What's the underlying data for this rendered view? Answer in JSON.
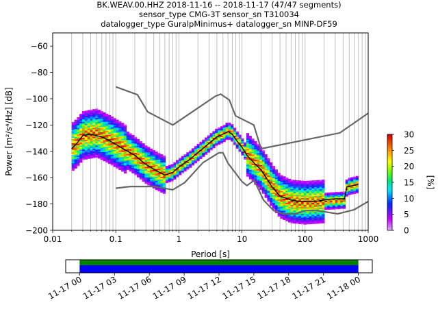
{
  "chart_data": {
    "type": "heatmap",
    "title_lines": [
      "BK.WEAV.00.HHZ   2018-11-16 -- 2018-11-17  (47/47 segments)",
      "sensor_type CMG-3T sensor_sn T310034",
      "datalogger_type GuralpMinimus+ datalogger_sn MINP-DF59"
    ],
    "xlabel": "Period [s]",
    "ylabel": "Power [m²/s⁴/Hz] [dB]",
    "x_scale": "log",
    "xlim": [
      0.01,
      1000
    ],
    "ylim": [
      -200,
      -50
    ],
    "x_ticks": [
      {
        "value": 0.01,
        "label": "0.01"
      },
      {
        "value": 0.1,
        "label": "0.1"
      },
      {
        "value": 1,
        "label": "1"
      },
      {
        "value": 10,
        "label": "10"
      },
      {
        "value": 100,
        "label": "100"
      },
      {
        "value": 1000,
        "label": "1000"
      }
    ],
    "y_ticks": [
      {
        "value": -60,
        "label": "−60"
      },
      {
        "value": -80,
        "label": "−80"
      },
      {
        "value": -100,
        "label": "−100"
      },
      {
        "value": -120,
        "label": "−120"
      },
      {
        "value": -140,
        "label": "−140"
      },
      {
        "value": -160,
        "label": "−160"
      },
      {
        "value": -180,
        "label": "−180"
      },
      {
        "value": -200,
        "label": "−200"
      }
    ],
    "grid": "vertical at minor and major period ticks",
    "noise_models": {
      "color": "#666666",
      "nhnm": [
        [
          0.1,
          -91
        ],
        [
          0.22,
          -97
        ],
        [
          0.32,
          -110
        ],
        [
          0.8,
          -120
        ],
        [
          3.8,
          -98
        ],
        [
          4.6,
          -96.5
        ],
        [
          6.3,
          -101
        ],
        [
          7.9,
          -113
        ],
        [
          15.4,
          -120
        ],
        [
          20,
          -138
        ],
        [
          354.8,
          -126
        ],
        [
          1000,
          -111
        ]
      ],
      "nlnm": [
        [
          0.1,
          -168
        ],
        [
          0.17,
          -166.7
        ],
        [
          0.4,
          -166.7
        ],
        [
          0.8,
          -169.2
        ],
        [
          1.24,
          -163.7
        ],
        [
          2.4,
          -148.6
        ],
        [
          4.3,
          -141.1
        ],
        [
          5.0,
          -141.1
        ],
        [
          6.0,
          -149
        ],
        [
          10,
          -163
        ],
        [
          12,
          -166
        ],
        [
          15.6,
          -162
        ],
        [
          21.9,
          -177
        ],
        [
          31.6,
          -185
        ],
        [
          45,
          -187.5
        ],
        [
          70,
          -187.5
        ],
        [
          101,
          -185
        ],
        [
          154,
          -185
        ],
        [
          328,
          -187.5
        ],
        [
          600,
          -184.4
        ],
        [
          1000,
          -178
        ]
      ]
    },
    "mean_curve": {
      "color": "#000000",
      "points": [
        [
          0.02,
          -138
        ],
        [
          0.025,
          -133
        ],
        [
          0.03,
          -128
        ],
        [
          0.04,
          -127
        ],
        [
          0.06,
          -129
        ],
        [
          0.08,
          -132
        ],
        [
          0.12,
          -137
        ],
        [
          0.2,
          -143
        ],
        [
          0.3,
          -150
        ],
        [
          0.45,
          -155
        ],
        [
          0.6,
          -158
        ],
        [
          0.8,
          -156
        ],
        [
          1.0,
          -152
        ],
        [
          1.5,
          -146
        ],
        [
          2.0,
          -141
        ],
        [
          3.0,
          -134
        ],
        [
          4.0,
          -129
        ],
        [
          5.0,
          -127
        ],
        [
          6.0,
          -125
        ],
        [
          7.0,
          -127
        ],
        [
          8.0,
          -131
        ],
        [
          10,
          -137
        ],
        [
          12,
          -143
        ],
        [
          15,
          -148
        ],
        [
          20,
          -154
        ],
        [
          30,
          -167
        ],
        [
          40,
          -174
        ],
        [
          60,
          -177
        ],
        [
          80,
          -178
        ],
        [
          100,
          -178
        ],
        [
          150,
          -178
        ],
        [
          200,
          -177
        ],
        [
          300,
          -176
        ],
        [
          420,
          -176
        ],
        [
          460,
          -167
        ],
        [
          700,
          -165
        ]
      ]
    },
    "band_center": [
      [
        0.02,
        -137
      ],
      [
        0.025,
        -133
      ],
      [
        0.03,
        -128
      ],
      [
        0.05,
        -126
      ],
      [
        0.08,
        -131
      ],
      [
        0.12,
        -136
      ],
      [
        0.2,
        -143
      ],
      [
        0.3,
        -150
      ],
      [
        0.45,
        -155
      ],
      [
        0.6,
        -158
      ],
      [
        0.8,
        -156
      ],
      [
        1.0,
        -152
      ],
      [
        1.5,
        -146
      ],
      [
        2,
        -141
      ],
      [
        3,
        -134
      ],
      [
        4,
        -129
      ],
      [
        5,
        -127
      ],
      [
        6,
        -124
      ],
      [
        7,
        -126
      ],
      [
        8,
        -130
      ],
      [
        10,
        -136
      ],
      [
        12,
        -142
      ],
      [
        15,
        -147
      ],
      [
        20,
        -153
      ],
      [
        30,
        -166
      ],
      [
        40,
        -174
      ],
      [
        60,
        -178
      ],
      [
        100,
        -179
      ],
      [
        200,
        -178
      ],
      [
        420,
        -177
      ],
      [
        460,
        -167
      ],
      [
        700,
        -165
      ]
    ],
    "colorbar": {
      "label": "[%]",
      "range": [
        0,
        30
      ],
      "ticks": [
        0,
        5,
        10,
        15,
        20,
        25,
        30
      ],
      "colormap": "pqlx"
    },
    "time_coverage": {
      "tick_labels": [
        "11-17 00",
        "11-17 03",
        "11-17 06",
        "11-17 09",
        "11-17 12",
        "11-17 15",
        "11-17 18",
        "11-17 21",
        "11-18 00"
      ],
      "tick_hours": [
        0,
        3,
        6,
        9,
        12,
        15,
        18,
        21,
        24
      ],
      "xlim_hours": [
        -1.2,
        25.2
      ],
      "data_span_hours": [
        0,
        24
      ],
      "gaps": [],
      "colors": {
        "data": "#0000ff",
        "processed": "#008000"
      }
    }
  }
}
